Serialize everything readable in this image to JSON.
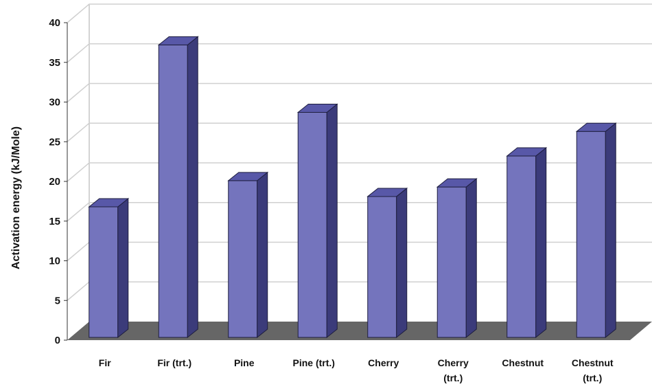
{
  "chart_data": {
    "type": "bar",
    "title": "",
    "xlabel": "",
    "ylabel": "Activation energy (kJ/Mole)",
    "ylim": [
      0,
      40
    ],
    "yticks": [
      0,
      5,
      10,
      15,
      20,
      25,
      30,
      35,
      40
    ],
    "categories": [
      [
        "Fir"
      ],
      [
        "Fir (trt.)"
      ],
      [
        "Pine"
      ],
      [
        "Pine (trt.)"
      ],
      [
        "Cherry"
      ],
      [
        "Cherry",
        "(trt.)"
      ],
      [
        "Chestnut"
      ],
      [
        "Chestnut",
        "(trt.)"
      ]
    ],
    "values": [
      16.8,
      37.2,
      20.1,
      28.7,
      18.1,
      19.3,
      23.2,
      26.3
    ],
    "grid": true,
    "legend": "none",
    "style": "3d",
    "colors": {
      "bar_front": "#7474bd",
      "bar_top": "#5858a8",
      "bar_side": "#3b3b7a",
      "floor": "#666666",
      "wall_line": "#aaaaaa",
      "gridline": "#d0d0d0"
    }
  }
}
